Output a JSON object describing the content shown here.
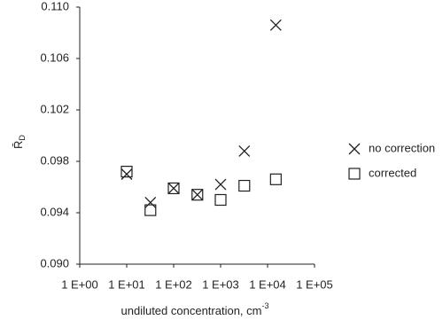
{
  "chart_data": {
    "type": "scatter",
    "xlabel": "undiluted concentration, cm",
    "xlabel_exponent": "-3",
    "ylabel": "R̄",
    "ylabel_subscript": "D",
    "log_x": true,
    "xlim": [
      1,
      100000
    ],
    "xticks": [
      {
        "value": 1,
        "label": "1 E+00"
      },
      {
        "value": 10,
        "label": "1 E+01"
      },
      {
        "value": 100,
        "label": "1 E+02"
      },
      {
        "value": 1000,
        "label": "1 E+03"
      },
      {
        "value": 10000,
        "label": "1 E+04"
      },
      {
        "value": 100000,
        "label": "1 E+05"
      }
    ],
    "ylim": [
      0.09,
      0.11
    ],
    "yticks": [
      {
        "value": 0.09,
        "label": "0.090"
      },
      {
        "value": 0.094,
        "label": "0.094"
      },
      {
        "value": 0.098,
        "label": "0.098"
      },
      {
        "value": 0.102,
        "label": "0.102"
      },
      {
        "value": 0.106,
        "label": "0.106"
      },
      {
        "value": 0.11,
        "label": "0.110"
      }
    ],
    "legend": "right",
    "series": [
      {
        "name": "no correction",
        "marker": "x",
        "color": "#231f20",
        "x": [
          10,
          32,
          100,
          320,
          1000,
          3200,
          15000
        ],
        "values": [
          0.097,
          0.0948,
          0.0959,
          0.0954,
          0.0962,
          0.0988,
          0.1086
        ]
      },
      {
        "name": "corrected",
        "marker": "square",
        "color": "#231f20",
        "x": [
          10,
          32,
          100,
          320,
          1000,
          3200,
          15000
        ],
        "values": [
          0.0972,
          0.0942,
          0.0959,
          0.0954,
          0.095,
          0.0961,
          0.0966
        ]
      }
    ]
  }
}
